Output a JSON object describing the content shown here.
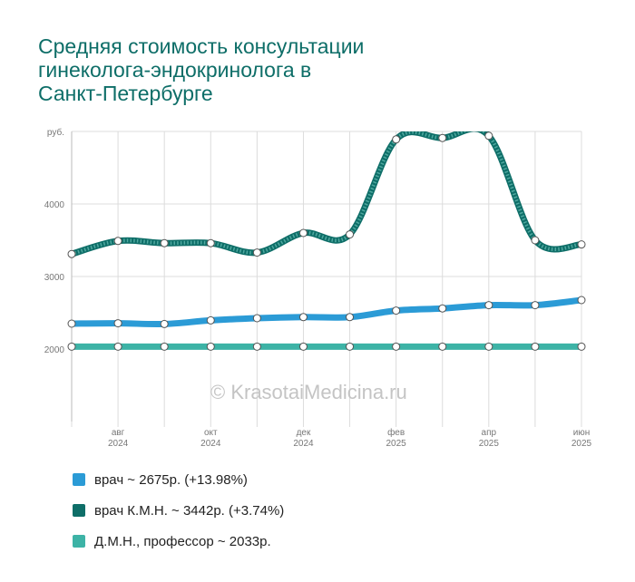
{
  "title": [
    "Средняя стоимость консультации",
    "гинеколога-эндокринолога в",
    "Санкт-Петербурге"
  ],
  "watermark": "© KrasotaiMedicina.ru",
  "chart_data": {
    "type": "line",
    "ylabel": "руб.",
    "ylim": [
      1000,
      5000
    ],
    "yticks": [
      {
        "value": 2000,
        "label": "2000"
      },
      {
        "value": 3000,
        "label": "3000"
      },
      {
        "value": 4000,
        "label": "4000"
      },
      {
        "value": 5000,
        "label": "руб."
      }
    ],
    "x_labels": [
      {
        "index": 1,
        "month": "авг",
        "year": "2024"
      },
      {
        "index": 3,
        "month": "окт",
        "year": "2024"
      },
      {
        "index": 5,
        "month": "дек",
        "year": "2024"
      },
      {
        "index": 7,
        "month": "фев",
        "year": "2025"
      },
      {
        "index": 9,
        "month": "апр",
        "year": "2025"
      },
      {
        "index": 11,
        "month": "июн",
        "year": "2025"
      }
    ],
    "categories": [
      "2024-07",
      "2024-08",
      "2024-09",
      "2024-10",
      "2024-11",
      "2024-12",
      "2025-01",
      "2025-02",
      "2025-03",
      "2025-04",
      "2025-05",
      "2025-06"
    ],
    "series": [
      {
        "name": "врач",
        "color": "#2b9bd6",
        "stroke": "plain",
        "width": 7,
        "values": [
          2350,
          2355,
          2345,
          2395,
          2425,
          2440,
          2440,
          2530,
          2560,
          2605,
          2605,
          2675
        ]
      },
      {
        "name": "врач К.М.Н.",
        "color": "#0e6e68",
        "stroke": "hatched",
        "width": 7,
        "values": [
          3310,
          3490,
          3460,
          3460,
          3330,
          3600,
          3580,
          4890,
          4910,
          4940,
          3500,
          3442
        ]
      },
      {
        "name": "Д.М.Н., профессор",
        "color": "#3db3a6",
        "stroke": "plain",
        "width": 7,
        "values": [
          2033,
          2033,
          2033,
          2033,
          2033,
          2033,
          2033,
          2033,
          2033,
          2033,
          2033,
          2033
        ]
      }
    ]
  },
  "legend": [
    {
      "label": "врач ~ 2675р. (+13.98%)",
      "color": "#2b9bd6"
    },
    {
      "label": "врач К.М.Н. ~ 3442р. (+3.74%)",
      "color": "#0e6e68"
    },
    {
      "label": "Д.М.Н., профессор ~ 2033р.",
      "color": "#3db3a6"
    }
  ]
}
